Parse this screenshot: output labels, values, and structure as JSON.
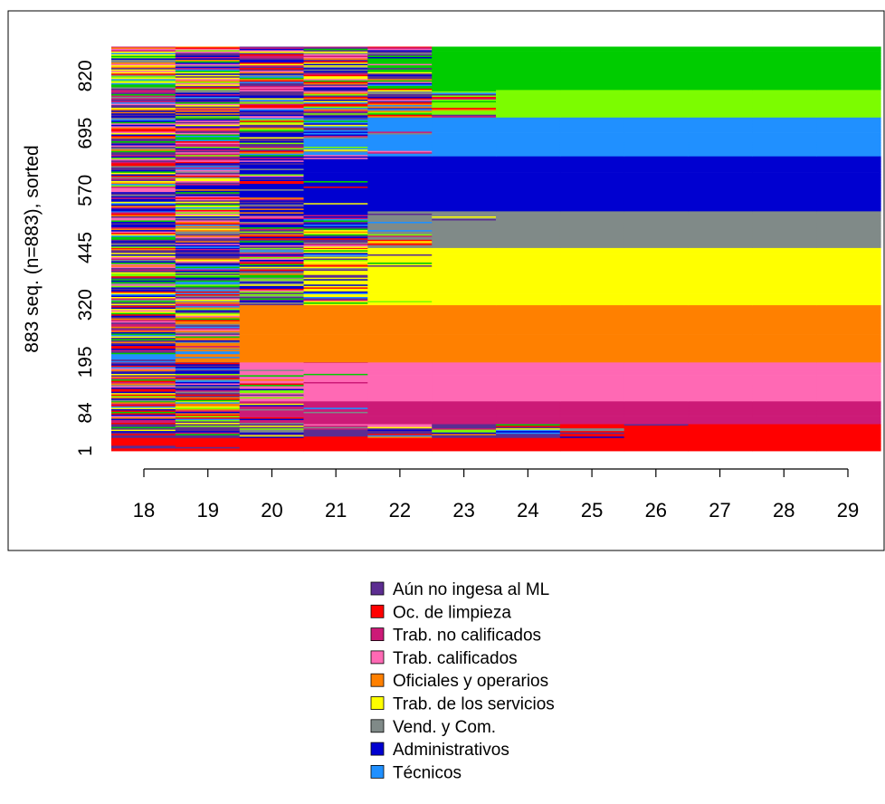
{
  "chart_data": {
    "type": "sequence-index-plot",
    "ylabel": "883 seq. (n=883), sorted",
    "x": [
      "18",
      "19",
      "20",
      "21",
      "22",
      "23",
      "24",
      "25",
      "26",
      "27",
      "28",
      "29"
    ],
    "y_ticks": [
      "1",
      "84",
      "195",
      "320",
      "445",
      "570",
      "695",
      "820"
    ],
    "y_range": [
      1,
      883
    ],
    "n_sequences": 883,
    "legend": [
      {
        "label": "Aún no ingesa al ML",
        "color": "#5c2d91"
      },
      {
        "label": "Oc. de limpieza",
        "color": "#ff0000"
      },
      {
        "label": "Trab. no calificados",
        "color": "#cc1a77"
      },
      {
        "label": "Trab. calificados",
        "color": "#ff69b4"
      },
      {
        "label": "Oficiales y operarios",
        "color": "#ff8000"
      },
      {
        "label": "Trab. de los servicios",
        "color": "#ffff00"
      },
      {
        "label": "Vend. y Com.",
        "color": "#808a88"
      },
      {
        "label": "Administrativos",
        "color": "#0000d0"
      },
      {
        "label": "Técnicos",
        "color": "#2090ff"
      }
    ],
    "legend_placement": "bottom"
  }
}
